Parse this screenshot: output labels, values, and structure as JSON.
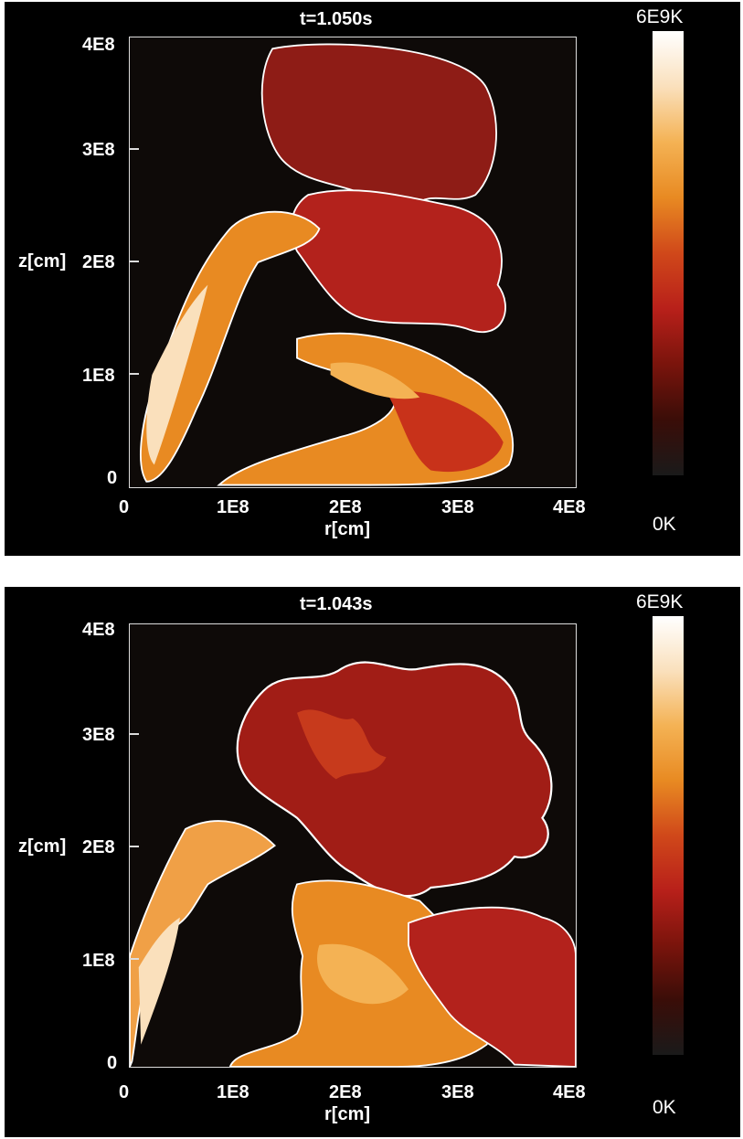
{
  "top_panel": {
    "title": "t=1.050s",
    "x_ticks": [
      "0",
      "1E8",
      "2E8",
      "3E8",
      "4E8"
    ],
    "y_ticks": [
      "4E8",
      "3E8",
      "2E8",
      "1E8",
      "0"
    ],
    "xlabel": "r[cm]",
    "ylabel": "z[cm]",
    "colorbar_max": "6E9K",
    "colorbar_min": "0K"
  },
  "bottom_panel": {
    "title": "t=1.043s",
    "x_ticks": [
      "0",
      "1E8",
      "2E8",
      "3E8",
      "4E8"
    ],
    "y_ticks": [
      "4E8",
      "3E8",
      "2E8",
      "1E8",
      "0"
    ],
    "xlabel": "r[cm]",
    "ylabel": "z[cm]",
    "colorbar_max": "6E9K",
    "colorbar_min": "0K"
  },
  "colormap": [
    "#1a1a1a",
    "#3a0d08",
    "#7a140c",
    "#b8201a",
    "#d0481a",
    "#e88a22",
    "#f4b254",
    "#fae0bc",
    "#ffffff"
  ]
}
